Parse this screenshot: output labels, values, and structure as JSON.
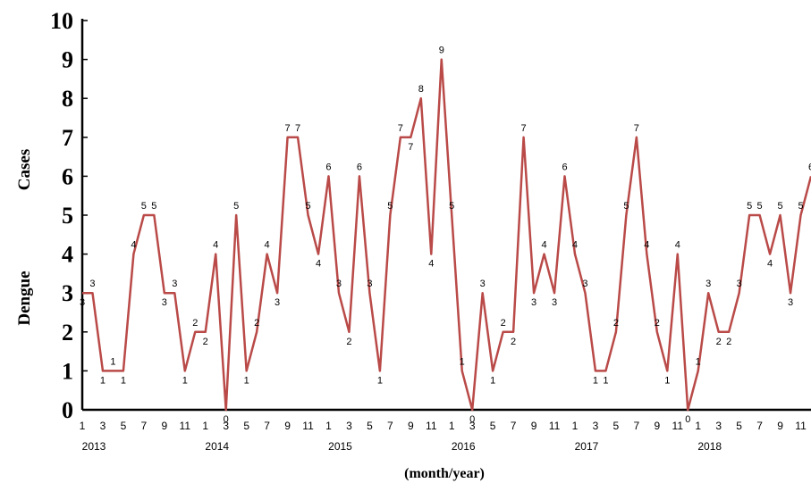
{
  "chart_data": {
    "type": "line",
    "ylabel_word1": "Dengue",
    "ylabel_word2": "Cases",
    "xlabel": "(month/year)",
    "ylim": [
      0,
      10
    ],
    "yticks": [
      "0",
      "1",
      "2",
      "3",
      "4",
      "5",
      "6",
      "7",
      "8",
      "9",
      "10"
    ],
    "grid": false,
    "line_color": "#b94a48",
    "month_tick_labels": [
      "1",
      "3",
      "5",
      "7",
      "9",
      "11"
    ],
    "years": [
      "2013",
      "2014",
      "2015",
      "2016",
      "2017",
      "2018"
    ],
    "series": [
      {
        "values": [
          3,
          3,
          1,
          1,
          1,
          4,
          5,
          5,
          3,
          3,
          1,
          2,
          2,
          4,
          0,
          5,
          1,
          2,
          4,
          3,
          7,
          7,
          5,
          4,
          6,
          3,
          2,
          6,
          3,
          1,
          5,
          7,
          7,
          8,
          4,
          9,
          5,
          1,
          0,
          3,
          1,
          2,
          2,
          7,
          3,
          4,
          3,
          6,
          4,
          3,
          1,
          1,
          2,
          5,
          7,
          4,
          2,
          1,
          4,
          0,
          1,
          3,
          2,
          2,
          3,
          5,
          5,
          4,
          5,
          3,
          5,
          6
        ]
      }
    ]
  }
}
